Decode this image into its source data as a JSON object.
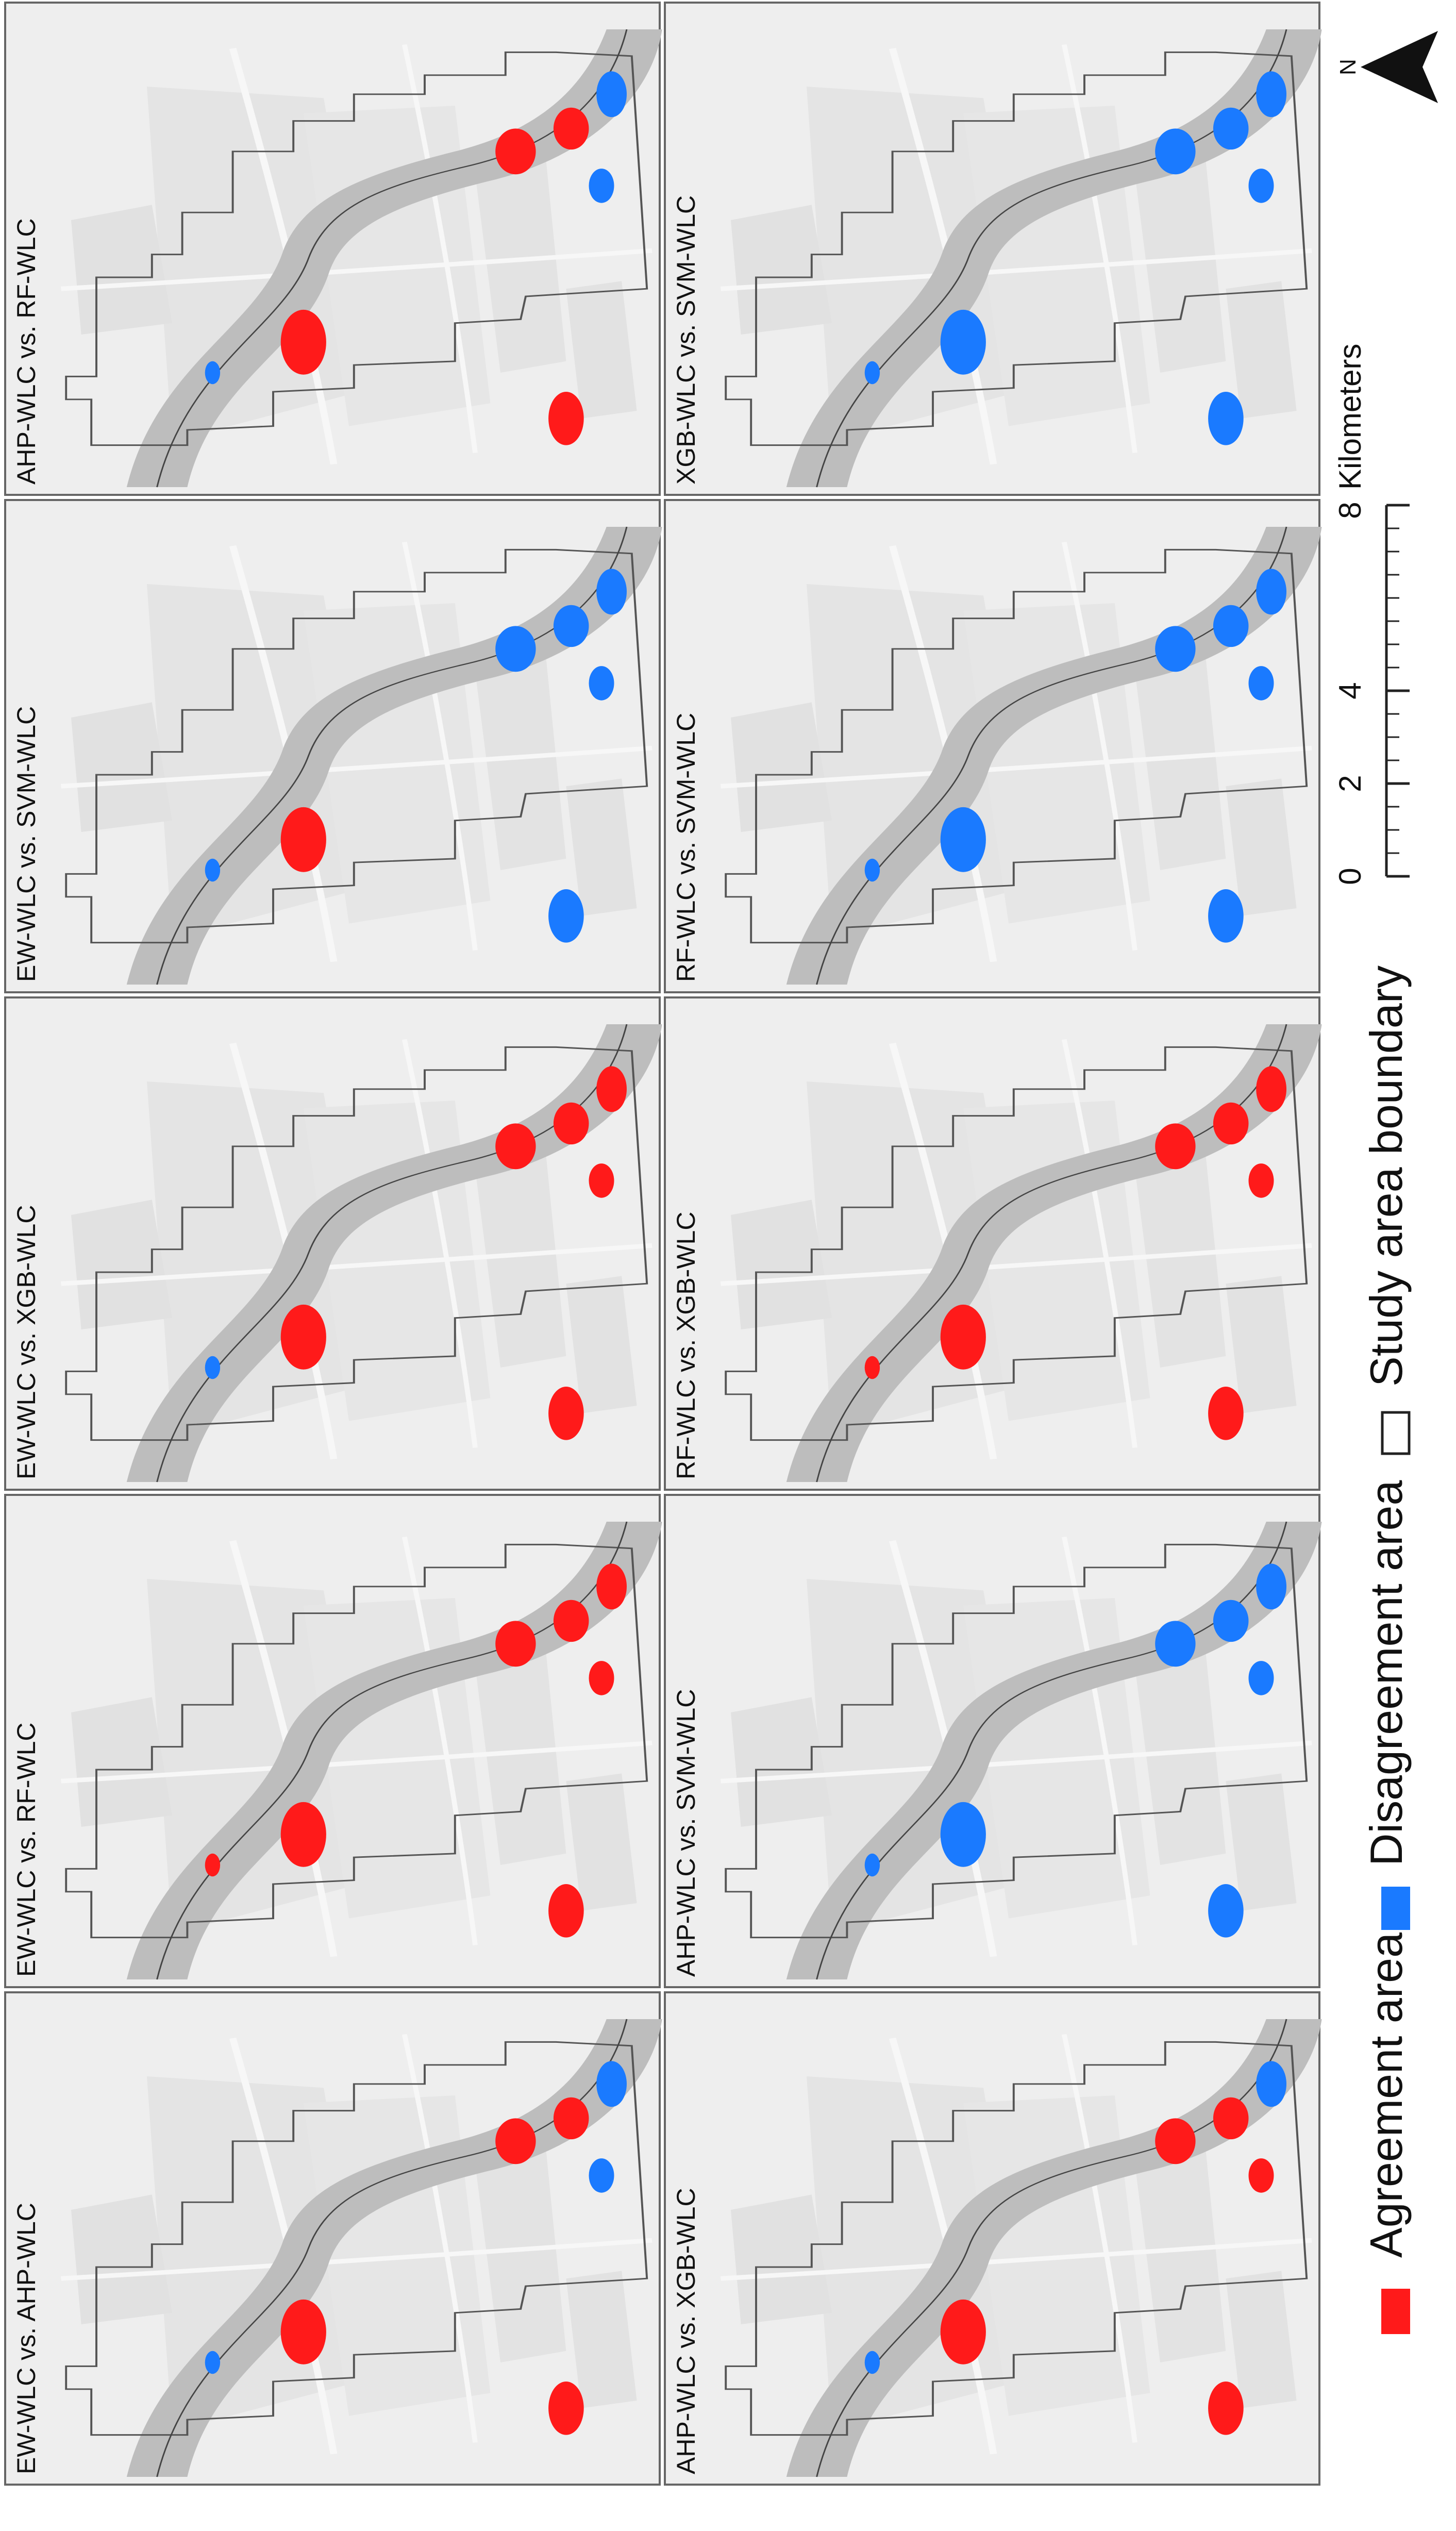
{
  "panels": [
    {
      "label": "EW-WLC vs. AHP-WLC",
      "agreement": 0.55,
      "disagreement": 0.45
    },
    {
      "label": "EW-WLC vs. RF-WLC",
      "agreement": 0.9,
      "disagreement": 0.1
    },
    {
      "label": "EW-WLC vs. XGB-WLC",
      "agreement": 0.8,
      "disagreement": 0.2
    },
    {
      "label": "EW-WLC vs. SVM-WLC",
      "agreement": 0.02,
      "disagreement": 0.98
    },
    {
      "label": "AHP-WLC vs. RF-WLC",
      "agreement": 0.55,
      "disagreement": 0.45
    },
    {
      "label": "AHP-WLC vs. XGB-WLC",
      "agreement": 0.6,
      "disagreement": 0.4
    },
    {
      "label": "AHP-WLC vs. SVM-WLC",
      "agreement": 0.0,
      "disagreement": 1.0
    },
    {
      "label": "RF-WLC vs. XGB-WLC",
      "agreement": 0.97,
      "disagreement": 0.03
    },
    {
      "label": "RF-WLC vs. SVM-WLC",
      "agreement": 0.0,
      "disagreement": 1.0
    },
    {
      "label": "XGB-WLC vs. SVM-WLC",
      "agreement": 0.0,
      "disagreement": 1.0
    }
  ],
  "legend": {
    "agreement_label": "Agreement area",
    "agreement_color": "#ff1a1a",
    "disagreement_label": "Disagreement area",
    "disagreement_color": "#1a7aff",
    "boundary_label": "Study area boundary",
    "boundary_color": "#ffffff"
  },
  "scale_bar": {
    "ticks": [
      "0",
      "2",
      "4",
      "8"
    ],
    "unit": "Kilometers"
  },
  "north_arrow": {
    "label": "N",
    "icon": "north-arrow-icon"
  },
  "colors": {
    "panel_background": "#eeeeee",
    "river_band": "#bdbdbd",
    "map_features": "#e2e2e2",
    "boundary_line": "#555555"
  }
}
